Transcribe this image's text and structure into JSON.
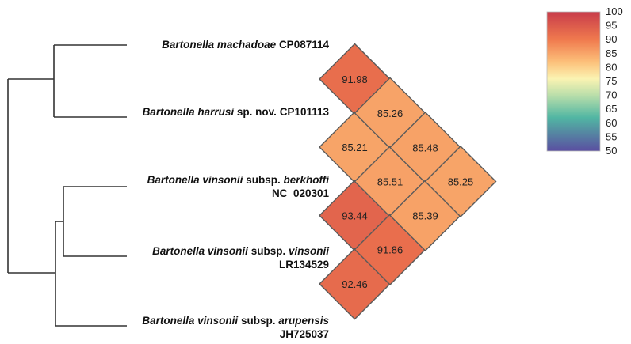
{
  "taxa": [
    {
      "genus": "Bartonella",
      "species": "machadoae",
      "suffix": "",
      "accession": "CP087114"
    },
    {
      "genus": "Bartonella",
      "species": "harrusi",
      "suffix": "sp. nov.",
      "accession": "CP101113"
    },
    {
      "genus": "Bartonella",
      "species": "vinsonii",
      "suffix": "subsp.",
      "subspecies": "berkhoffi",
      "accession": "NC_020301"
    },
    {
      "genus": "Bartonella",
      "species": "vinsonii",
      "suffix": "subsp.",
      "subspecies": "vinsonii",
      "accession": "LR134529"
    },
    {
      "genus": "Bartonella",
      "species": "vinsonii",
      "suffix": "subsp.",
      "subspecies": "arupensis",
      "accession": "JH725037"
    }
  ],
  "matrix": [
    {
      "row": 1,
      "col": 0,
      "value": 91.98
    },
    {
      "row": 2,
      "col": 0,
      "value": 85.21
    },
    {
      "row": 2,
      "col": 1,
      "value": 85.26
    },
    {
      "row": 3,
      "col": 0,
      "value": 93.44
    },
    {
      "row": 3,
      "col": 1,
      "value": 85.51
    },
    {
      "row": 3,
      "col": 2,
      "value": 85.48
    },
    {
      "row": 4,
      "col": 0,
      "value": 92.46
    },
    {
      "row": 4,
      "col": 1,
      "value": 91.86
    },
    {
      "row": 4,
      "col": 2,
      "value": 85.39
    },
    {
      "row": 4,
      "col": 3,
      "value": 85.25
    }
  ],
  "colorbar": {
    "ticks": [
      "100",
      "95",
      "90",
      "85",
      "80",
      "75",
      "70",
      "65",
      "60",
      "55",
      "50"
    ],
    "min": 50,
    "max": 100,
    "stops": [
      {
        "value": 100,
        "color": "#c83c4a"
      },
      {
        "value": 90,
        "color": "#f07a4e"
      },
      {
        "value": 82,
        "color": "#fcc07a"
      },
      {
        "value": 76,
        "color": "#fbf3b2"
      },
      {
        "value": 70,
        "color": "#b9deaa"
      },
      {
        "value": 62,
        "color": "#51b6a3"
      },
      {
        "value": 50,
        "color": "#5a4ea1"
      }
    ]
  },
  "colors": {
    "tree": "#333333",
    "cell_border": "#5a5a5a",
    "text": "#111111"
  }
}
